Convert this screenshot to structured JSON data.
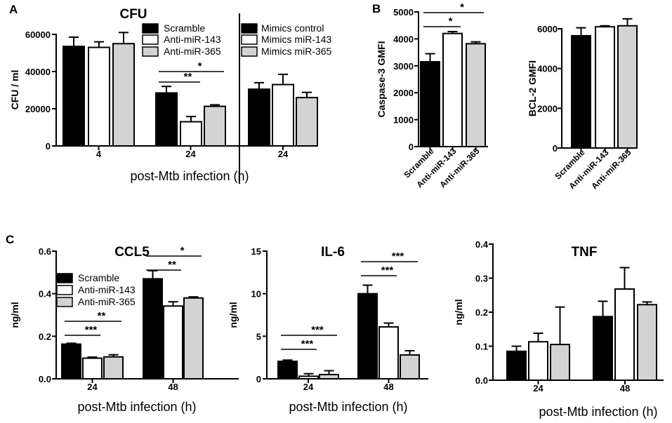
{
  "chart_data": [
    {
      "id": "cfu",
      "panel_label": "A",
      "type": "bar",
      "title": "CFU",
      "ylabel": "CFU / ml",
      "xlabel": "post-Mtb infection (h)",
      "ylim": [
        0,
        60000
      ],
      "yticks": [
        0,
        20000,
        40000,
        60000
      ],
      "ytick_labels": [
        "0",
        "20000",
        "40000",
        "60000"
      ],
      "groups": [
        {
          "label": "4",
          "bars": [
            {
              "series": "Scramble",
              "value": 53500,
              "err": 5000
            },
            {
              "series": "Anti-miR-143",
              "value": 53000,
              "err": 3000
            },
            {
              "series": "Anti-miR-365",
              "value": 55000,
              "err": 6000
            }
          ]
        },
        {
          "label": "24",
          "bars": [
            {
              "series": "Scramble",
              "value": 28500,
              "err": 3500
            },
            {
              "series": "Anti-miR-143",
              "value": 13000,
              "err": 2800
            },
            {
              "series": "Anti-miR-365",
              "value": 21300,
              "err": 800
            }
          ]
        },
        {
          "label": "24",
          "bars": [
            {
              "series": "Mimics control",
              "value": 30500,
              "err": 3500
            },
            {
              "series": "Mimics miR-143",
              "value": 33000,
              "err": 5500
            },
            {
              "series": "Mimics miR-365",
              "value": 26000,
              "err": 2800
            }
          ]
        }
      ],
      "legend_left": [
        "Scramble",
        "Anti-miR-143",
        "Anti-miR-365"
      ],
      "legend_right": [
        "Mimics control",
        "Mimics miR-143",
        "Mimics miR-365"
      ],
      "significance": [
        {
          "group": 1,
          "from": 0,
          "to": 1,
          "label": "**"
        },
        {
          "group": 1,
          "from": 0,
          "to": 2,
          "label": "*"
        }
      ]
    },
    {
      "id": "caspase",
      "panel_label": "B",
      "type": "bar",
      "ylabel": "Caspase-3 GMFI",
      "ylim": [
        0,
        5000
      ],
      "yticks": [
        0,
        1000,
        2000,
        3000,
        4000,
        5000
      ],
      "ytick_labels": [
        "0",
        "1000",
        "2000",
        "3000",
        "4000",
        "5000"
      ],
      "categories": [
        "Scramble",
        "Anti-miR-143",
        "Anti-miR-365"
      ],
      "values": [
        3150,
        4200,
        3820
      ],
      "errors": [
        300,
        70,
        70
      ],
      "significance": [
        {
          "from": 0,
          "to": 1,
          "label": "*"
        },
        {
          "from": 0,
          "to": 2,
          "label": "*"
        }
      ]
    },
    {
      "id": "bcl2",
      "type": "bar",
      "ylabel": "BCL-2 GMFI",
      "ylim": [
        0,
        6000
      ],
      "yticks": [
        0,
        2000,
        4000,
        6000
      ],
      "ytick_labels": [
        "0",
        "2000",
        "4000",
        "6000"
      ],
      "categories": [
        "Scramble",
        "Anti-miR-143",
        "Anti-miR-365"
      ],
      "values": [
        5650,
        6100,
        6150
      ],
      "errors": [
        400,
        50,
        350
      ]
    },
    {
      "id": "ccl5",
      "panel_label": "C",
      "type": "bar",
      "title": "CCL5",
      "ylabel": "ng/ml",
      "xlabel": "post-Mtb infection (h)",
      "ylim": [
        0,
        0.6
      ],
      "yticks": [
        0,
        0.2,
        0.4,
        0.6
      ],
      "ytick_labels": [
        "0.0",
        "0.2",
        "0.4",
        "0.6"
      ],
      "groups": [
        {
          "label": "24",
          "bars": [
            {
              "series": "Scramble",
              "value": 0.163,
              "err": 0.004
            },
            {
              "series": "Anti-miR-143",
              "value": 0.097,
              "err": 0.005
            },
            {
              "series": "Anti-miR-365",
              "value": 0.103,
              "err": 0.01
            }
          ]
        },
        {
          "label": "48",
          "bars": [
            {
              "series": "Scramble",
              "value": 0.47,
              "err": 0.038
            },
            {
              "series": "Anti-miR-143",
              "value": 0.342,
              "err": 0.02
            },
            {
              "series": "Anti-miR-365",
              "value": 0.38,
              "err": 0.005
            }
          ]
        }
      ],
      "legend": [
        "Scramble",
        "Anti-miR-143",
        "Anti-miR-365"
      ],
      "significance": [
        {
          "group": 0,
          "from": 0,
          "to": 1,
          "label": "***"
        },
        {
          "group": 0,
          "from": 0,
          "to": 2,
          "label": "**"
        },
        {
          "group": 1,
          "from": 0,
          "to": 1,
          "label": "**"
        },
        {
          "group": 1,
          "from": 0,
          "to": 2,
          "label": "*"
        }
      ]
    },
    {
      "id": "il6",
      "type": "bar",
      "title": "IL-6",
      "ylabel": "ng/ml",
      "xlabel": "post-Mtb infection (h)",
      "ylim": [
        0,
        15
      ],
      "yticks": [
        0,
        5,
        10,
        15
      ],
      "ytick_labels": [
        "0",
        "5",
        "10",
        "15"
      ],
      "groups": [
        {
          "label": "24",
          "bars": [
            {
              "series": "Scramble",
              "value": 2.05,
              "err": 0.15
            },
            {
              "series": "Anti-miR-143",
              "value": 0.3,
              "err": 0.3
            },
            {
              "series": "Anti-miR-365",
              "value": 0.5,
              "err": 0.45
            }
          ]
        },
        {
          "label": "48",
          "bars": [
            {
              "series": "Scramble",
              "value": 10.0,
              "err": 1.0
            },
            {
              "series": "Anti-miR-143",
              "value": 6.1,
              "err": 0.45
            },
            {
              "series": "Anti-miR-365",
              "value": 2.8,
              "err": 0.5
            }
          ]
        }
      ],
      "significance": [
        {
          "group": 0,
          "from": 0,
          "to": 1,
          "label": "***"
        },
        {
          "group": 0,
          "from": 0,
          "to": 2,
          "label": "***"
        },
        {
          "group": 1,
          "from": 0,
          "to": 1,
          "label": "***"
        },
        {
          "group": 1,
          "from": 0,
          "to": 2,
          "label": "***"
        }
      ]
    },
    {
      "id": "tnf",
      "type": "bar",
      "title": "TNF",
      "ylabel": "ng/ml",
      "xlabel": "post-Mtb infection (h)",
      "ylim": [
        0,
        0.4
      ],
      "yticks": [
        0,
        0.1,
        0.2,
        0.3,
        0.4
      ],
      "ytick_labels": [
        "0.0",
        "0.1",
        "0.2",
        "0.3",
        "0.4"
      ],
      "groups": [
        {
          "label": "24",
          "bars": [
            {
              "series": "Scramble",
              "value": 0.085,
              "err": 0.015
            },
            {
              "series": "Anti-miR-143",
              "value": 0.113,
              "err": 0.025
            },
            {
              "series": "Anti-miR-365",
              "value": 0.105,
              "err": 0.11
            }
          ]
        },
        {
          "label": "48",
          "bars": [
            {
              "series": "Scramble",
              "value": 0.187,
              "err": 0.045
            },
            {
              "series": "Anti-miR-143",
              "value": 0.268,
              "err": 0.063
            },
            {
              "series": "Anti-miR-365",
              "value": 0.222,
              "err": 0.008
            }
          ]
        }
      ]
    }
  ]
}
